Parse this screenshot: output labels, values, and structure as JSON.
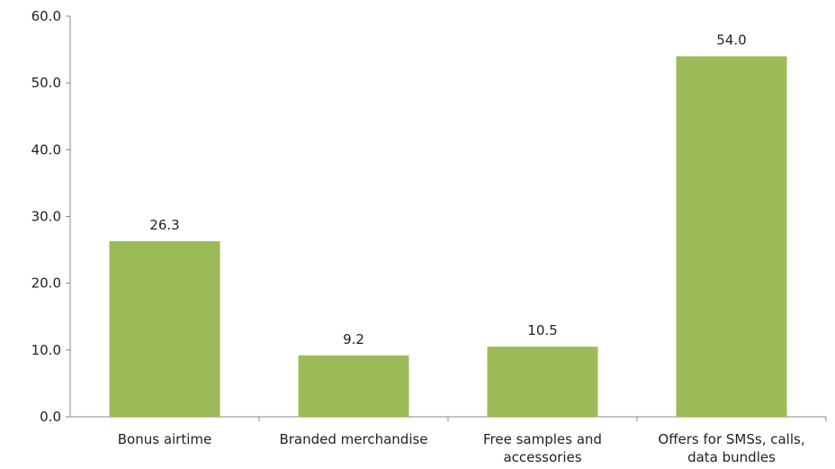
{
  "chart_data": {
    "type": "bar",
    "categories": [
      "Bonus airtime",
      "Branded merchandise",
      "Free samples and accessories",
      "Offers for SMSs, calls, data bundles"
    ],
    "category_lines": [
      [
        "Bonus airtime"
      ],
      [
        "Branded merchandise"
      ],
      [
        "Free samples and",
        "accessories"
      ],
      [
        "Offers for SMSs, calls,",
        "data bundles"
      ]
    ],
    "values": [
      26.3,
      9.2,
      10.5,
      54.0
    ],
    "value_labels": [
      "26.3",
      "9.2",
      "10.5",
      "54.0"
    ],
    "yticks": [
      "0.0",
      "10.0",
      "20.0",
      "30.0",
      "40.0",
      "50.0",
      "60.0"
    ],
    "ylim": [
      0,
      60
    ],
    "title": "",
    "xlabel": "",
    "ylabel": "",
    "grid": false,
    "legend": "none",
    "colors": {
      "bar": "#9BBB59",
      "axis": "#888888",
      "text": "#222222"
    }
  }
}
